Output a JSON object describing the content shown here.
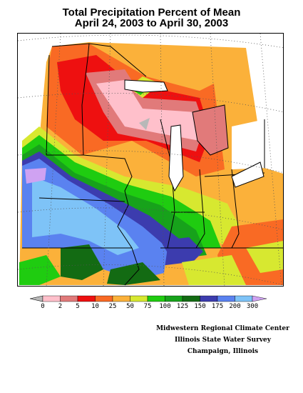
{
  "title": {
    "line1": "Total Precipitation Percent of Mean",
    "line2": "April 24, 2003 to April 30, 2003"
  },
  "legend": {
    "ticks": [
      "0",
      "2",
      "5",
      "10",
      "25",
      "50",
      "75",
      "100",
      "125",
      "150",
      "175",
      "200",
      "300"
    ],
    "colors": [
      "#ffc0cb",
      "#e17a7a",
      "#ee1010",
      "#f96a24",
      "#fbb13a",
      "#d7e830",
      "#1fcc10",
      "#17a21b",
      "#136b13",
      "#3c3cae",
      "#5a82f0",
      "#7ec3f7",
      "#cfa2f2"
    ],
    "under_color": "#b8b8b8"
  },
  "credits": {
    "line1": "Midwestern Regional Climate Center",
    "line2": "Illinois State Water Survey",
    "line3": "Champaign, Illinois"
  }
}
